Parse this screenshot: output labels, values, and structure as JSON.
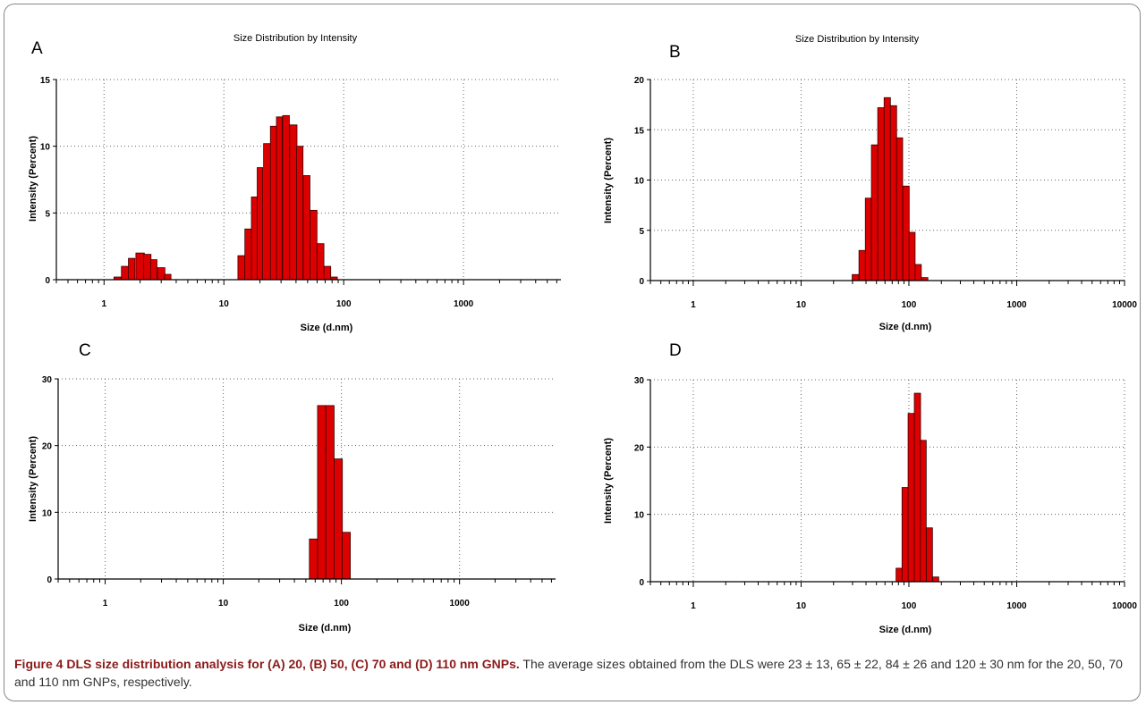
{
  "chart_data": [
    {
      "type": "bar",
      "panel": "A",
      "title": "Size Distribution by Intensity",
      "xlabel": "Size (d.nm)",
      "ylabel": "Intensity (Percent)",
      "x_scale": "log",
      "xlim": [
        0.4,
        6500
      ],
      "ylim": [
        0,
        15
      ],
      "x_ticks": [
        1,
        10,
        100,
        1000
      ],
      "y_ticks": [
        0,
        5,
        10,
        15
      ],
      "grid": true,
      "color": "#dd0000",
      "sizes": [
        1.3,
        1.5,
        1.7,
        2.0,
        2.3,
        2.6,
        3.0,
        3.4,
        14,
        16,
        18,
        20,
        23,
        26,
        29,
        33,
        38,
        43,
        49,
        56,
        64,
        73,
        83
      ],
      "values": [
        0.2,
        1.0,
        1.6,
        2.0,
        1.9,
        1.5,
        0.9,
        0.4,
        1.8,
        3.8,
        6.2,
        8.4,
        10.2,
        11.5,
        12.2,
        12.3,
        11.6,
        10.0,
        7.8,
        5.2,
        2.7,
        1.0,
        0.2
      ]
    },
    {
      "type": "bar",
      "panel": "B",
      "title": "Size Distribution by Intensity",
      "xlabel": "Size (d.nm)",
      "ylabel": "Intensity (Percent)",
      "x_scale": "log",
      "xlim": [
        0.4,
        10000
      ],
      "ylim": [
        0,
        20
      ],
      "x_ticks": [
        1,
        10,
        100,
        1000,
        10000
      ],
      "y_ticks": [
        0,
        5,
        10,
        15,
        20
      ],
      "grid": true,
      "color": "#dd0000",
      "sizes": [
        32,
        37,
        42,
        48,
        55,
        63,
        72,
        82,
        94,
        107,
        122,
        140
      ],
      "values": [
        0.6,
        3.0,
        8.2,
        13.5,
        17.2,
        18.2,
        17.4,
        14.2,
        9.4,
        4.8,
        1.6,
        0.3
      ]
    },
    {
      "type": "bar",
      "panel": "C",
      "title": "",
      "xlabel": "Size (d.nm)",
      "ylabel": "Intensity (Percent)",
      "x_scale": "log",
      "xlim": [
        0.4,
        6500
      ],
      "ylim": [
        0,
        30
      ],
      "x_ticks": [
        1,
        10,
        100,
        1000
      ],
      "y_ticks": [
        0,
        10,
        20,
        30
      ],
      "grid": true,
      "color": "#dd0000",
      "sizes": [
        58,
        68,
        80,
        94,
        110
      ],
      "values": [
        6,
        26,
        26,
        18,
        7
      ]
    },
    {
      "type": "bar",
      "panel": "D",
      "title": "",
      "xlabel": "Size (d.nm)",
      "ylabel": "Intensity (Percent)",
      "x_scale": "log",
      "xlim": [
        0.4,
        10000
      ],
      "ylim": [
        0,
        30
      ],
      "x_ticks": [
        1,
        10,
        100,
        1000,
        10000
      ],
      "y_ticks": [
        0,
        10,
        20,
        30
      ],
      "grid": true,
      "color": "#dd0000",
      "sizes": [
        81,
        92,
        105,
        120,
        136,
        155,
        177
      ],
      "values": [
        2,
        14,
        25,
        28,
        21,
        8,
        0.7
      ]
    }
  ],
  "caption": {
    "bold": "Figure 4 DLS size distribution analysis for (A) 20, (B) 50, (C) 70 and (D) 110 nm GNPs.",
    "text": " The average sizes obtained from the DLS were 23 ± 13, 65 ± 22, 84 ± 26 and 120 ± 30 nm for the 20, 50, 70 and 110 nm GNPs, respectively."
  }
}
